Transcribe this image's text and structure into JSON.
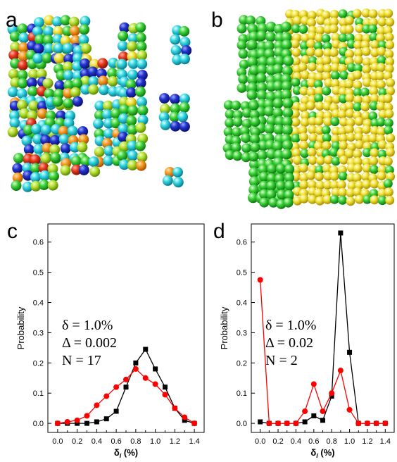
{
  "panel_labels": {
    "a": "a",
    "b": "b",
    "c": "c",
    "d": "d"
  },
  "colors": {
    "black_series": "#000000",
    "red_series": "#ff0000"
  },
  "chart_data": [
    {
      "panel": "c",
      "type": "line",
      "xlabel": "δ_i (%)",
      "ylabel": "Probability",
      "xlim": [
        -0.1,
        1.5
      ],
      "ylim": [
        -0.03,
        0.66
      ],
      "x_ticks": [
        "0.0",
        "0.2",
        "0.4",
        "0.6",
        "0.8",
        "1.0",
        "1.2",
        "1.4"
      ],
      "y_ticks": [
        "0.0",
        "0.1",
        "0.2",
        "0.3",
        "0.4",
        "0.5",
        "0.6"
      ],
      "annotations": [
        "δ = 1.0%",
        "Δ = 0.002",
        "N = 17"
      ],
      "series": [
        {
          "color": "#000000",
          "marker": "square",
          "x": [
            0.0,
            0.1,
            0.2,
            0.3,
            0.4,
            0.5,
            0.6,
            0.7,
            0.8,
            0.9,
            1.0,
            1.1,
            1.2,
            1.3,
            1.4
          ],
          "y": [
            0.0,
            0.0,
            0.0,
            0.0,
            0.005,
            0.015,
            0.04,
            0.12,
            0.2,
            0.245,
            0.18,
            0.12,
            0.05,
            0.01,
            0.0
          ]
        },
        {
          "color": "#ff0000",
          "marker": "circle",
          "x": [
            0.0,
            0.1,
            0.2,
            0.3,
            0.4,
            0.5,
            0.6,
            0.7,
            0.8,
            0.9,
            1.0,
            1.1,
            1.2,
            1.3,
            1.4
          ],
          "y": [
            0.0,
            0.005,
            0.01,
            0.025,
            0.06,
            0.09,
            0.12,
            0.145,
            0.18,
            0.15,
            0.13,
            0.095,
            0.05,
            0.02,
            0.0
          ]
        }
      ]
    },
    {
      "panel": "d",
      "type": "line",
      "xlabel": "δ_i (%)",
      "ylabel": "Probability",
      "xlim": [
        -0.1,
        1.5
      ],
      "ylim": [
        -0.03,
        0.66
      ],
      "x_ticks": [
        "0.0",
        "0.2",
        "0.4",
        "0.6",
        "0.8",
        "1.0",
        "1.2",
        "1.4"
      ],
      "y_ticks": [
        "0.0",
        "0.1",
        "0.2",
        "0.3",
        "0.4",
        "0.5",
        "0.6"
      ],
      "annotations": [
        "δ = 1.0%",
        "Δ = 0.02",
        "N = 2"
      ],
      "series": [
        {
          "color": "#000000",
          "marker": "square",
          "x": [
            0.0,
            0.1,
            0.2,
            0.3,
            0.4,
            0.5,
            0.6,
            0.7,
            0.8,
            0.9,
            1.0,
            1.1,
            1.2,
            1.3,
            1.4
          ],
          "y": [
            0.005,
            0.0,
            0.0,
            0.0,
            0.0,
            0.005,
            0.025,
            0.01,
            0.09,
            0.63,
            0.235,
            0.0,
            0.0,
            0.0,
            0.0
          ]
        },
        {
          "color": "#ff0000",
          "marker": "circle",
          "x": [
            0.0,
            0.1,
            0.2,
            0.3,
            0.4,
            0.5,
            0.6,
            0.7,
            0.8,
            0.9,
            1.0,
            1.1,
            1.2,
            1.3,
            1.4
          ],
          "y": [
            0.475,
            0.0,
            0.0,
            0.0,
            0.0,
            0.04,
            0.13,
            0.04,
            0.1,
            0.175,
            0.045,
            0.0,
            0.0,
            0.0,
            0.0
          ]
        }
      ]
    }
  ]
}
